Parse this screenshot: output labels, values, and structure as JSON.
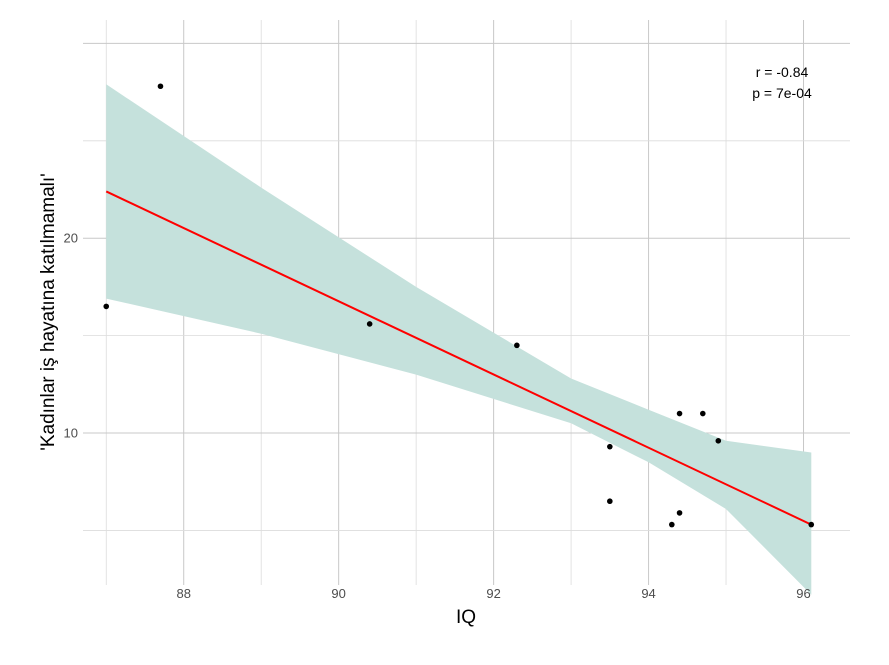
{
  "chart_data": {
    "type": "scatter",
    "title": "",
    "xlabel": "IQ",
    "ylabel": "'Kadınlar iş hayatına katılmamalı'",
    "xlim": [
      86.7,
      96.6
    ],
    "ylim": [
      2.2,
      31.2
    ],
    "x_ticks": [
      88,
      90,
      92,
      94,
      96
    ],
    "y_ticks": [
      10,
      20
    ],
    "grid": true,
    "legend": "none",
    "points": [
      {
        "x": 87.0,
        "y": 16.5
      },
      {
        "x": 87.7,
        "y": 27.8
      },
      {
        "x": 90.4,
        "y": 15.6
      },
      {
        "x": 92.3,
        "y": 14.5
      },
      {
        "x": 93.5,
        "y": 9.3
      },
      {
        "x": 93.5,
        "y": 6.5
      },
      {
        "x": 94.3,
        "y": 5.3
      },
      {
        "x": 94.4,
        "y": 11.0
      },
      {
        "x": 94.4,
        "y": 5.9
      },
      {
        "x": 94.7,
        "y": 11.0
      },
      {
        "x": 94.9,
        "y": 9.6
      },
      {
        "x": 96.1,
        "y": 5.3
      }
    ],
    "fit_line": {
      "x": [
        87.0,
        96.1
      ],
      "y": [
        22.4,
        5.3
      ],
      "color": "#ff0000"
    },
    "confidence_band": {
      "x": [
        87.0,
        89.0,
        91.0,
        93.0,
        94.0,
        95.0,
        96.1
      ],
      "lower": [
        16.9,
        15.1,
        13.0,
        10.5,
        8.5,
        6.1,
        1.7
      ],
      "upper": [
        27.9,
        22.6,
        17.5,
        12.8,
        11.2,
        9.6,
        9.0
      ],
      "color": "#c5e1dc"
    },
    "annotations": [
      "r = -0.84",
      "p = 7e-04"
    ]
  },
  "colors": {
    "point": "#000000",
    "fit_line": "#ff0000",
    "band": "#c5e1dc",
    "grid": "#c8c8c8"
  }
}
